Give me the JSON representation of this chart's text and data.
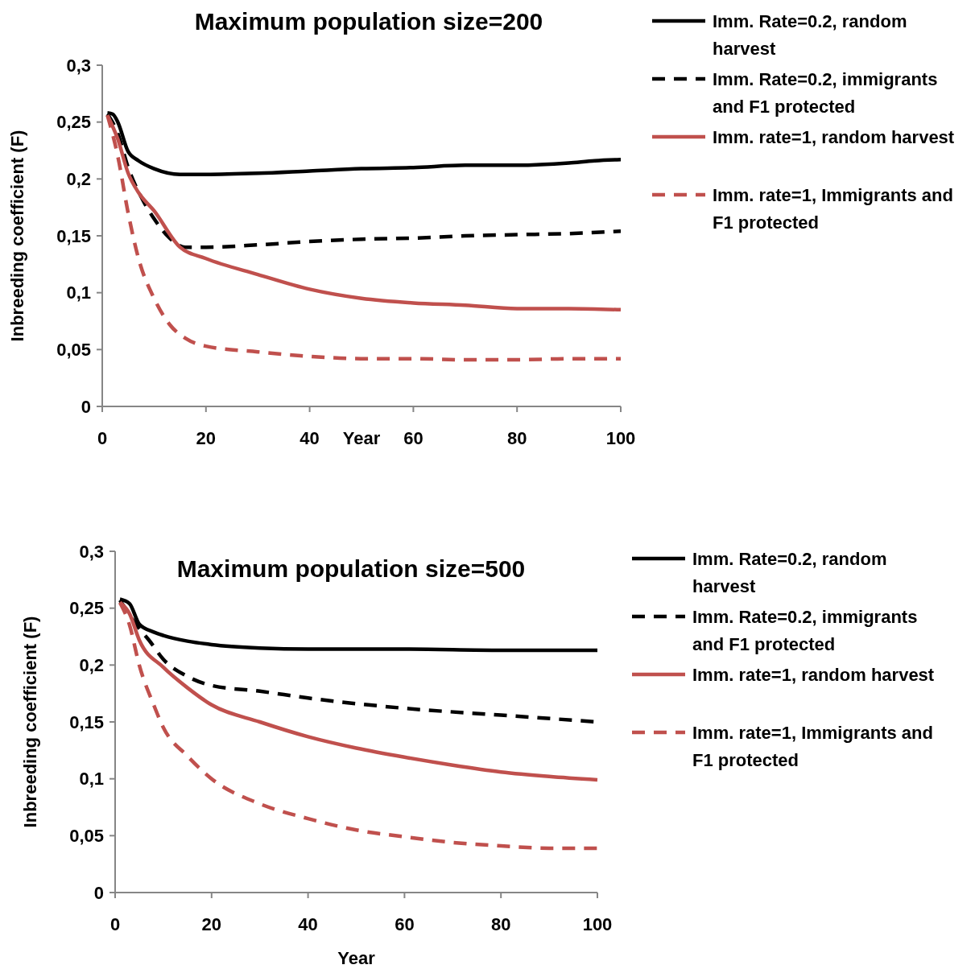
{
  "chart_data": [
    {
      "type": "line",
      "title": "Maximum population size=200",
      "xlabel": "Year",
      "ylabel": "Inbreeding coefficient (F)",
      "xlim": [
        0,
        100
      ],
      "xticks": [
        0,
        20,
        40,
        60,
        80,
        100
      ],
      "ylim": [
        0,
        0.3
      ],
      "yticks": [
        {
          "value": 0,
          "label": "0"
        },
        {
          "value": 0.05,
          "label": "0,05"
        },
        {
          "value": 0.1,
          "label": "0,1"
        },
        {
          "value": 0.15,
          "label": "0,15"
        },
        {
          "value": 0.2,
          "label": "0,2"
        },
        {
          "value": 0.25,
          "label": "0,25"
        },
        {
          "value": 0.3,
          "label": "0,3"
        }
      ],
      "grid": false,
      "legend": "right",
      "marker": "none",
      "series": [
        {
          "name": "Imm. Rate=0.2, random harvest",
          "color": "#000000",
          "line_style": "solid",
          "x": [
            1,
            2,
            3,
            5,
            7,
            10,
            15,
            20,
            30,
            40,
            50,
            60,
            70,
            80,
            90,
            95,
            100
          ],
          "values": [
            0.258,
            0.257,
            0.25,
            0.224,
            0.216,
            0.209,
            0.204,
            0.204,
            0.205,
            0.207,
            0.209,
            0.21,
            0.212,
            0.212,
            0.214,
            0.216,
            0.217
          ]
        },
        {
          "name": "Imm. Rate=0.2, immigrants and F1 protected",
          "color": "#000000",
          "line_style": "dashed",
          "x": [
            1,
            3,
            5,
            8,
            10,
            13,
            16,
            20,
            30,
            40,
            50,
            60,
            70,
            80,
            90,
            100
          ],
          "values": [
            0.257,
            0.24,
            0.21,
            0.18,
            0.165,
            0.148,
            0.14,
            0.14,
            0.142,
            0.145,
            0.147,
            0.148,
            0.15,
            0.151,
            0.152,
            0.154
          ]
        },
        {
          "name": "Imm. rate=1, random harvest",
          "color": "#c0504d",
          "line_style": "solid",
          "x": [
            1,
            3,
            5,
            7,
            10,
            15,
            20,
            30,
            40,
            50,
            60,
            70,
            80,
            90,
            100
          ],
          "values": [
            0.256,
            0.235,
            0.205,
            0.188,
            0.172,
            0.14,
            0.13,
            0.116,
            0.103,
            0.095,
            0.091,
            0.089,
            0.086,
            0.086,
            0.085
          ]
        },
        {
          "name": "Imm. rate=1, Immigrants and F1 protected",
          "color": "#c0504d",
          "line_style": "dashed",
          "x": [
            1,
            3,
            5,
            7,
            10,
            13,
            16,
            20,
            30,
            40,
            50,
            60,
            70,
            80,
            90,
            100
          ],
          "values": [
            0.256,
            0.22,
            0.17,
            0.13,
            0.095,
            0.072,
            0.06,
            0.053,
            0.048,
            0.044,
            0.042,
            0.042,
            0.041,
            0.041,
            0.042,
            0.042
          ]
        }
      ]
    },
    {
      "type": "line",
      "title": "Maximum population size=500",
      "xlabel": "Year",
      "ylabel": "Inbreeding coefficient (F)",
      "xlim": [
        0,
        100
      ],
      "xticks": [
        0,
        20,
        40,
        60,
        80,
        100
      ],
      "ylim": [
        0,
        0.3
      ],
      "yticks": [
        {
          "value": 0,
          "label": "0"
        },
        {
          "value": 0.05,
          "label": "0,05"
        },
        {
          "value": 0.1,
          "label": "0,1"
        },
        {
          "value": 0.15,
          "label": "0,15"
        },
        {
          "value": 0.2,
          "label": "0,2"
        },
        {
          "value": 0.25,
          "label": "0,25"
        },
        {
          "value": 0.3,
          "label": "0,3"
        }
      ],
      "grid": false,
      "legend": "right",
      "marker": "none",
      "series": [
        {
          "name": "Imm. Rate=0.2, random harvest",
          "color": "#000000",
          "line_style": "solid",
          "x": [
            1,
            3,
            5,
            8,
            10,
            15,
            20,
            30,
            40,
            60,
            80,
            100
          ],
          "values": [
            0.258,
            0.254,
            0.236,
            0.229,
            0.226,
            0.221,
            0.218,
            0.215,
            0.214,
            0.214,
            0.213,
            0.213
          ]
        },
        {
          "name": "Imm. Rate=0.2, immigrants and F1 protected",
          "color": "#000000",
          "line_style": "dashed",
          "x": [
            1,
            5,
            7,
            10,
            15,
            20,
            30,
            40,
            60,
            80,
            100
          ],
          "values": [
            0.257,
            0.232,
            0.222,
            0.205,
            0.19,
            0.182,
            0.177,
            0.171,
            0.162,
            0.156,
            0.15
          ]
        },
        {
          "name": "Imm. rate=1, random harvest",
          "color": "#c0504d",
          "line_style": "solid",
          "x": [
            1,
            3,
            5,
            10,
            15,
            20,
            30,
            40,
            50,
            60,
            70,
            80,
            90,
            100
          ],
          "values": [
            0.255,
            0.245,
            0.222,
            0.198,
            0.18,
            0.165,
            0.15,
            0.137,
            0.127,
            0.119,
            0.112,
            0.106,
            0.102,
            0.099
          ]
        },
        {
          "name": "Imm. rate=1, Immigrants and F1 protected",
          "color": "#c0504d",
          "line_style": "dashed",
          "x": [
            1,
            3,
            5,
            8,
            10,
            15,
            20,
            30,
            40,
            50,
            60,
            70,
            80,
            90,
            100
          ],
          "values": [
            0.255,
            0.235,
            0.2,
            0.165,
            0.145,
            0.12,
            0.1,
            0.078,
            0.065,
            0.055,
            0.049,
            0.044,
            0.041,
            0.039,
            0.039
          ]
        }
      ]
    }
  ]
}
